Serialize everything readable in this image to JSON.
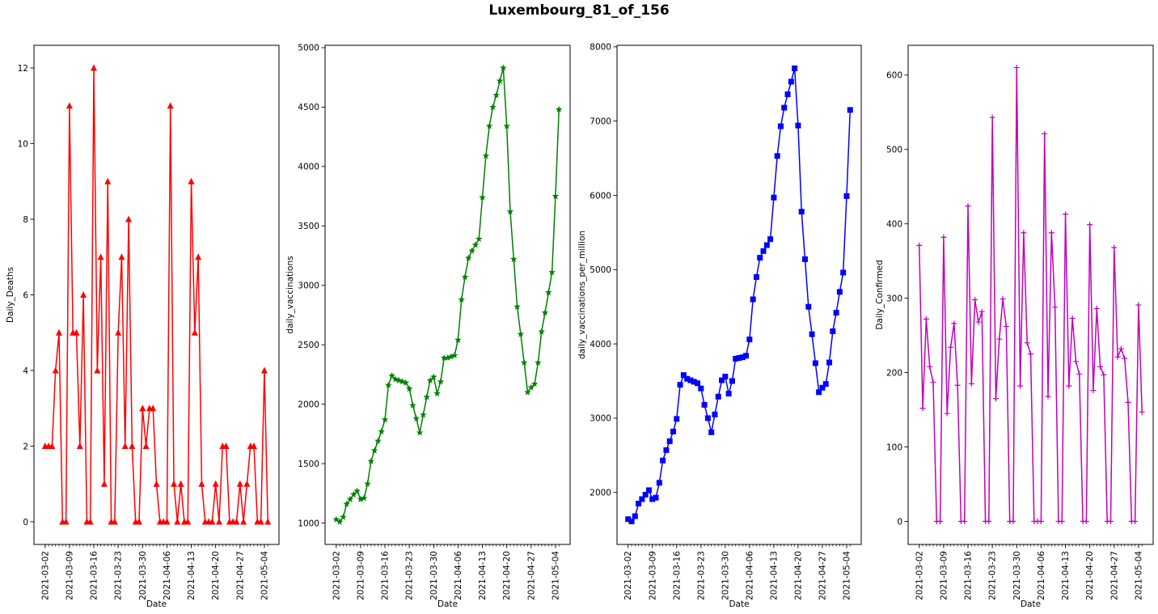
{
  "figure_title": "Luxembourg_81_of_156",
  "chart_data": [
    {
      "type": "line",
      "xlabel": "Date",
      "ylabel": "Daily_Deaths",
      "color": "#ff0000",
      "marker": "triangle",
      "ylim": [
        -0.6,
        12.6
      ],
      "yticks": [
        0,
        2,
        4,
        6,
        8,
        10,
        12
      ],
      "xticks": [
        "2021-03-02",
        "2021-03-09",
        "2021-03-16",
        "2021-03-23",
        "2021-03-30",
        "2021-04-06",
        "2021-04-13",
        "2021-04-20",
        "2021-04-27",
        "2021-05-04"
      ],
      "start_date": "2021-03-02",
      "values": [
        2,
        2,
        2,
        4,
        5,
        0,
        0,
        11,
        5,
        5,
        2,
        6,
        0,
        0,
        12,
        4,
        7,
        1,
        9,
        0,
        0,
        5,
        7,
        2,
        8,
        2,
        0,
        0,
        3,
        2,
        3,
        3,
        1,
        0,
        0,
        0,
        11,
        1,
        0,
        1,
        0,
        0,
        9,
        5,
        7,
        1,
        0,
        0,
        0,
        1,
        0,
        2,
        2,
        0,
        0,
        0,
        1,
        0,
        1,
        2,
        2,
        0,
        0,
        4,
        0
      ]
    },
    {
      "type": "line",
      "xlabel": "Date",
      "ylabel": "daily_vaccinations",
      "color": "#008000",
      "marker": "star",
      "ylim": [
        820,
        5020
      ],
      "yticks": [
        1000,
        1500,
        2000,
        2500,
        3000,
        3500,
        4000,
        4500,
        5000
      ],
      "xticks": [
        "2021-03-02",
        "2021-03-09",
        "2021-03-16",
        "2021-03-23",
        "2021-03-30",
        "2021-04-06",
        "2021-04-13",
        "2021-04-20",
        "2021-04-27",
        "2021-05-04"
      ],
      "start_date": "2021-03-02",
      "values": [
        1030,
        1010,
        1050,
        1160,
        1200,
        1240,
        1270,
        1200,
        1210,
        1330,
        1520,
        1610,
        1690,
        1770,
        1870,
        2160,
        2240,
        2210,
        2200,
        2190,
        2180,
        2130,
        1990,
        1880,
        1760,
        1910,
        2060,
        2200,
        2230,
        2090,
        2190,
        2390,
        2390,
        2400,
        2410,
        2540,
        2880,
        3070,
        3230,
        3290,
        3340,
        3390,
        3740,
        4090,
        4340,
        4500,
        4600,
        4720,
        4830,
        4340,
        3620,
        3220,
        2820,
        2590,
        2350,
        2100,
        2140,
        2170,
        2350,
        2610,
        2770,
        2940,
        3110,
        3750,
        4480
      ]
    },
    {
      "type": "line",
      "xlabel": "Date",
      "ylabel": "daily_vaccinations_per_million",
      "color": "#0000ff",
      "marker": "square",
      "ylim": [
        1300,
        8020
      ],
      "yticks": [
        2000,
        3000,
        4000,
        5000,
        6000,
        7000,
        8000
      ],
      "xticks": [
        "2021-03-02",
        "2021-03-09",
        "2021-03-16",
        "2021-03-23",
        "2021-03-30",
        "2021-04-06",
        "2021-04-13",
        "2021-04-20",
        "2021-04-27",
        "2021-05-04"
      ],
      "start_date": "2021-03-02",
      "values": [
        1640,
        1610,
        1680,
        1850,
        1910,
        1970,
        2030,
        1910,
        1930,
        2130,
        2430,
        2570,
        2690,
        2820,
        2990,
        3450,
        3580,
        3530,
        3510,
        3490,
        3470,
        3400,
        3180,
        3000,
        2810,
        3050,
        3290,
        3510,
        3560,
        3330,
        3500,
        3800,
        3810,
        3820,
        3840,
        4060,
        4600,
        4900,
        5160,
        5250,
        5330,
        5410,
        5970,
        6530,
        6930,
        7180,
        7360,
        7530,
        7710,
        6940,
        5780,
        5140,
        4500,
        4130,
        3740,
        3350,
        3410,
        3460,
        3750,
        4170,
        4420,
        4700,
        4960,
        5990,
        7150
      ]
    },
    {
      "type": "line",
      "xlabel": "Date",
      "ylabel": "Daily_Confirmed",
      "color": "#bf00bf",
      "marker": "plus",
      "ylim": [
        -31,
        640
      ],
      "yticks": [
        0,
        100,
        200,
        300,
        400,
        500,
        600
      ],
      "xticks": [
        "2021-03-02",
        "2021-03-09",
        "2021-03-16",
        "2021-03-23",
        "2021-03-30",
        "2021-04-06",
        "2021-04-13",
        "2021-04-20",
        "2021-04-27",
        "2021-05-04"
      ],
      "start_date": "2021-03-02",
      "values": [
        371,
        152,
        272,
        208,
        187,
        0,
        0,
        382,
        145,
        234,
        266,
        183,
        0,
        0,
        424,
        185,
        298,
        268,
        282,
        0,
        0,
        543,
        165,
        245,
        299,
        262,
        0,
        0,
        610,
        182,
        388,
        240,
        225,
        0,
        0,
        0,
        521,
        168,
        388,
        288,
        0,
        0,
        413,
        182,
        273,
        215,
        198,
        0,
        0,
        399,
        176,
        286,
        208,
        197,
        0,
        0,
        368,
        221,
        232,
        219,
        160,
        0,
        0,
        291,
        147
      ]
    }
  ]
}
